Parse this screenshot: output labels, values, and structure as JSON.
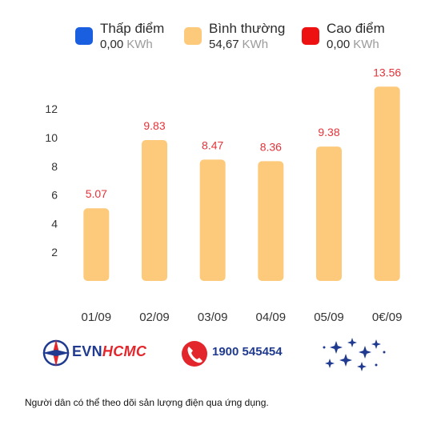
{
  "legend": [
    {
      "name": "Thấp điểm",
      "value": "0,00",
      "unit": "KWh",
      "color": "#1a5fe0"
    },
    {
      "name": "Bình thường",
      "value": "54,67",
      "unit": "KWh",
      "color": "#fdc97a"
    },
    {
      "name": "Cao điểm",
      "value": "0,00",
      "unit": "KWh",
      "color": "#ee1111"
    }
  ],
  "chart_data": {
    "type": "bar",
    "categories": [
      "01/09",
      "02/09",
      "03/09",
      "04/09",
      "05/09",
      "0€/09"
    ],
    "values": [
      5.07,
      9.83,
      8.47,
      8.36,
      9.38,
      13.56
    ],
    "data_labels": [
      "5.07",
      "9.83",
      "8.47",
      "8.36",
      "9.38",
      "13.56"
    ],
    "yticks": [
      "2",
      "4",
      "6",
      "8",
      "10",
      "12"
    ],
    "ylim": [
      0,
      14
    ],
    "bar_color": "#fdc97a",
    "label_color": "#e3343a",
    "grid": false
  },
  "footer": {
    "evn_part1": "EVN",
    "evn_part2": "HCMC",
    "hotline": "1900 545454"
  },
  "caption": "Người dân có thể theo dõi sản lượng điện qua ứng dụng."
}
